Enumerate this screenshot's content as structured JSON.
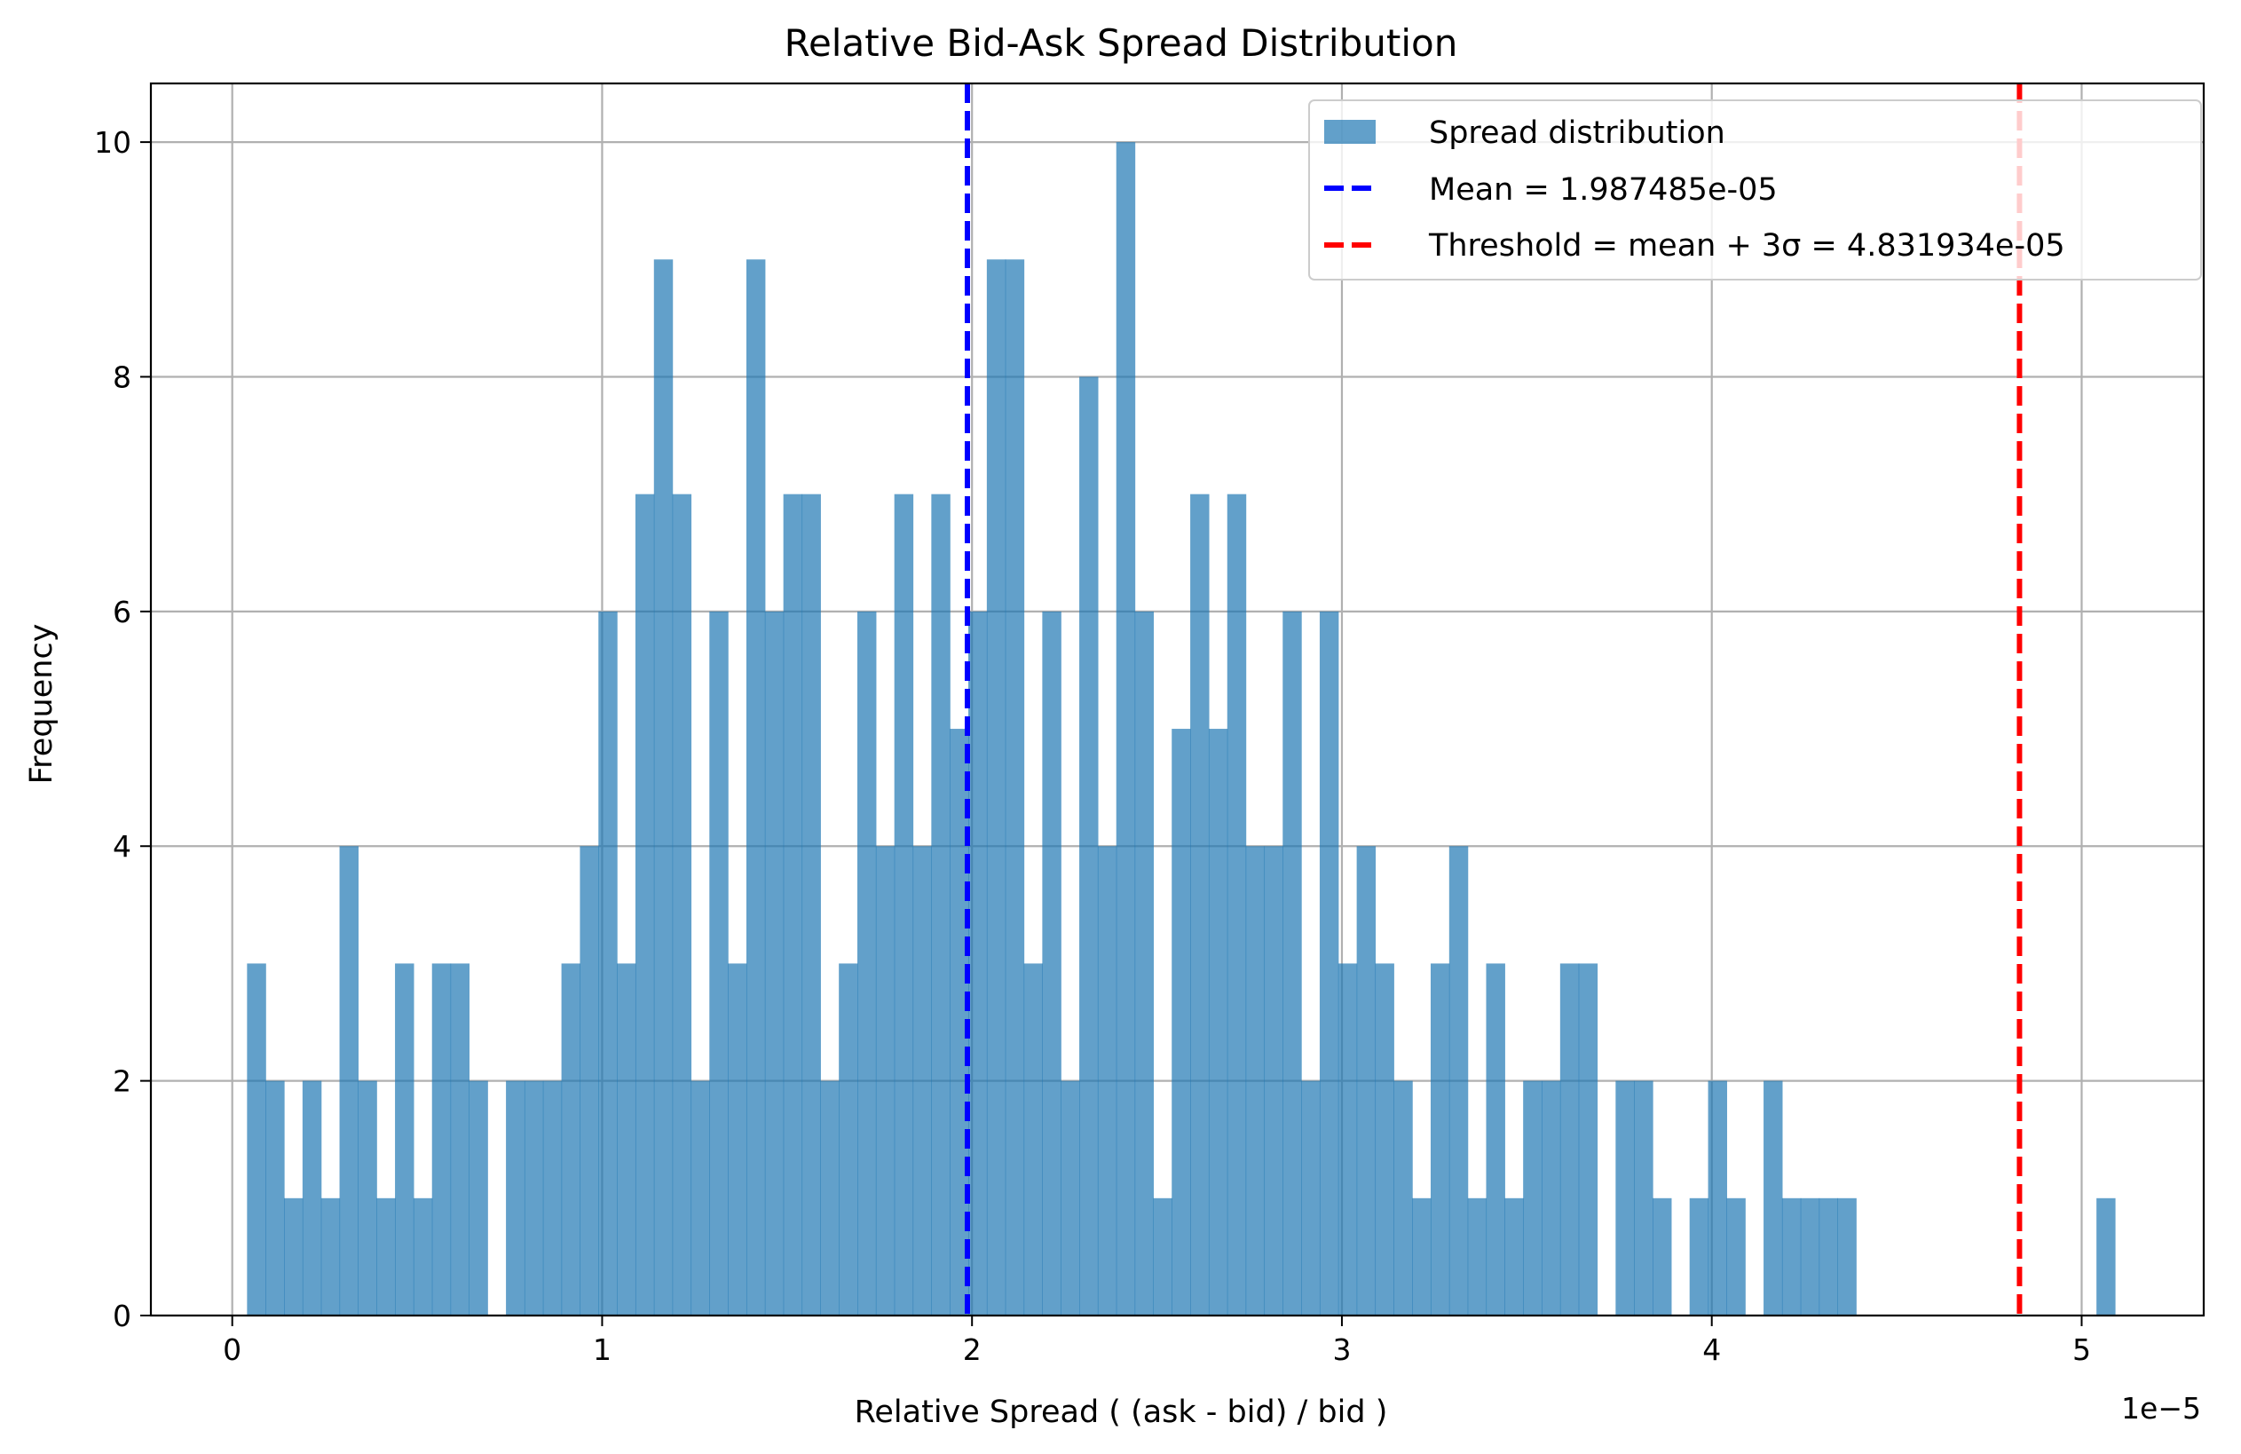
{
  "chart_data": {
    "type": "bar",
    "title": "Relative Bid-Ask Spread Distribution",
    "xlabel": "Relative Spread ( (ask - bid) / bid )",
    "ylabel": "Frequency",
    "x_offset_label": "1e−5",
    "xlim": [
      -0.22,
      5.33
    ],
    "ylim": [
      0,
      10.5
    ],
    "grid": true,
    "legend_position": "top-right",
    "x_ticks": [
      0,
      1,
      2,
      3,
      4,
      5
    ],
    "x_tick_labels": [
      "0",
      "1",
      "2",
      "3",
      "4",
      "5"
    ],
    "y_ticks": [
      0,
      2,
      4,
      6,
      8,
      10
    ],
    "y_tick_labels": [
      "0",
      "2",
      "4",
      "6",
      "8",
      "10"
    ],
    "bar_color": "#1f77b4",
    "bin_start": 0.04,
    "bin_width": 0.05,
    "series": [
      {
        "name": "Spread distribution",
        "values": [
          3,
          2,
          1,
          2,
          1,
          4,
          2,
          1,
          3,
          1,
          3,
          3,
          2,
          0,
          2,
          2,
          2,
          3,
          4,
          6,
          3,
          7,
          9,
          7,
          2,
          6,
          3,
          9,
          6,
          7,
          7,
          2,
          3,
          6,
          4,
          7,
          4,
          7,
          5,
          6,
          9,
          9,
          3,
          6,
          2,
          8,
          4,
          10,
          6,
          1,
          5,
          7,
          5,
          7,
          4,
          4,
          6,
          2,
          6,
          3,
          4,
          3,
          2,
          1,
          3,
          4,
          1,
          3,
          1,
          2,
          2,
          3,
          3,
          0,
          2,
          2,
          1,
          0,
          1,
          2,
          1,
          0,
          2,
          1,
          1,
          1,
          1,
          0,
          0,
          0,
          0,
          0,
          0,
          0,
          0,
          0,
          0,
          0,
          0,
          0,
          1
        ]
      }
    ],
    "reference_lines": [
      {
        "name": "Mean = 1.987485e-05",
        "x": 1.987485,
        "color": "#0000ff",
        "style": "dashed"
      },
      {
        "name": "Threshold = mean + 3σ = 4.831934e-05",
        "x": 4.831934,
        "color": "#ff0000",
        "style": "dashed"
      }
    ]
  }
}
